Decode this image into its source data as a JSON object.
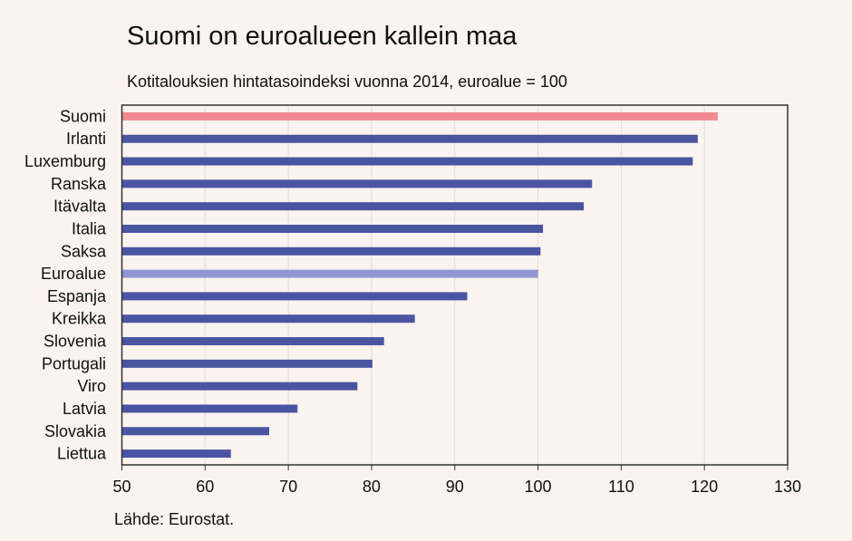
{
  "chart_data": {
    "type": "bar",
    "orientation": "horizontal",
    "title": "Suomi on euroalueen kallein maa",
    "subtitle": "Kotitalouksien hintatasoindeksi vuonna 2014, euroalue = 100",
    "source": "Lähde: Eurostat.",
    "categories": [
      "Suomi",
      "Irlanti",
      "Luxemburg",
      "Ranska",
      "Itävalta",
      "Italia",
      "Saksa",
      "Euroalue",
      "Espanja",
      "Kreikka",
      "Slovenia",
      "Portugali",
      "Viro",
      "Latvia",
      "Slovakia",
      "Liettua"
    ],
    "values": [
      121.6,
      119.2,
      118.6,
      106.5,
      105.5,
      100.6,
      100.3,
      100,
      91.5,
      85.2,
      81.5,
      80.1,
      78.3,
      71.1,
      67.7,
      63.1
    ],
    "xlim": [
      50,
      130
    ],
    "xticks": [
      "50",
      "60",
      "70",
      "80",
      "90",
      "100",
      "110",
      "120",
      "130"
    ],
    "grid": true,
    "colors": {
      "default": "#4a55a2",
      "highlight": "#f08a92",
      "reference": "#8f96d2"
    },
    "highlight_category": "Suomi",
    "reference_category": "Euroalue"
  }
}
